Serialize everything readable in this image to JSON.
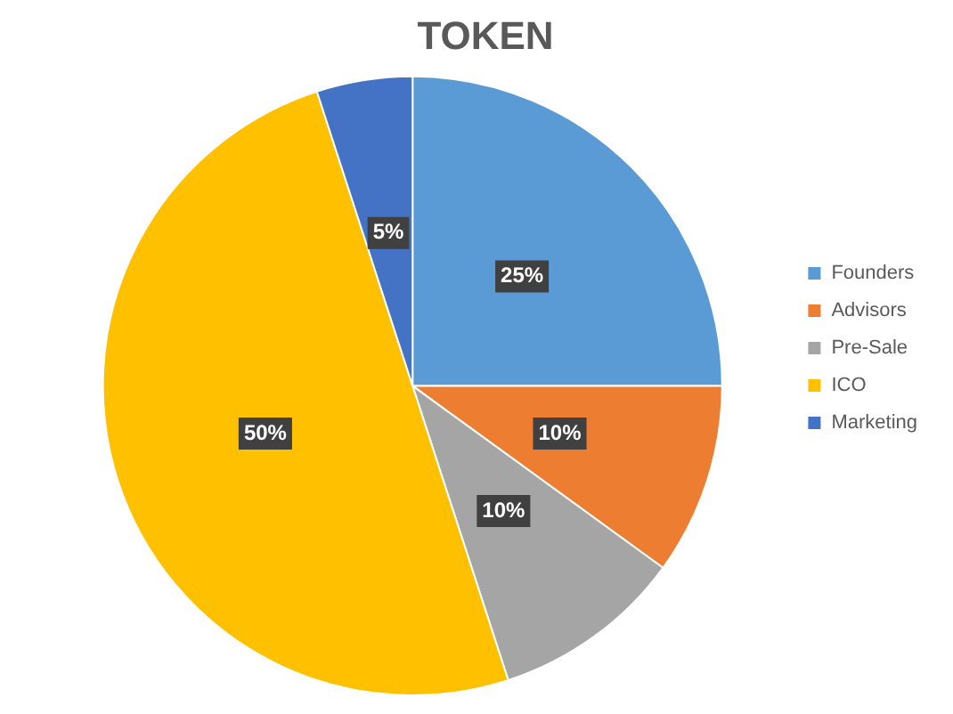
{
  "chart_data": {
    "type": "pie",
    "title": "TOKEN",
    "categories": [
      "Founders",
      "Advisors",
      "Pre-Sale",
      "ICO",
      "Marketing"
    ],
    "values": [
      25,
      10,
      10,
      50,
      5
    ],
    "value_labels": [
      "25%",
      "10%",
      "10%",
      "50%",
      "5%"
    ],
    "colors": [
      "#5b9bd5",
      "#ed7d31",
      "#a5a5a5",
      "#ffc000",
      "#4472c4"
    ],
    "legend": "right"
  }
}
